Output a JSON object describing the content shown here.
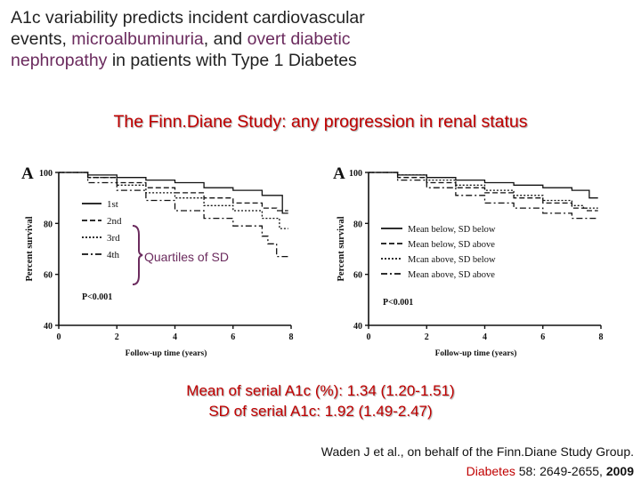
{
  "title": {
    "part1": "A1c variability predicts incident cardiovascular",
    "part2_pre": "events, ",
    "part2_hl1": "microalbuminuria",
    "part2_mid": ", and ",
    "part2_hl2": "overt diabetic",
    "part3_hl": "nephropathy",
    "part3_post": " in patients with Type 1 Diabetes"
  },
  "subtitle": "The Finn.Diane Study: any progression in renal status",
  "annotation": "Quartiles of SD",
  "stats": {
    "mean": "Mean of serial A1c (%): 1.34 (1.20-1.51)",
    "sd": "SD of serial A1c: 1.92 (1.49-2.47)"
  },
  "reference": {
    "line1": "Waden J et al., on behalf of the Finn.Diane Study Group.",
    "journal": "Diabetes",
    "pages": " 58: 2649-2655, ",
    "year": "2009"
  },
  "colors": {
    "accent": "#c00000",
    "highlight": "#6b2b5e"
  },
  "chart_data": [
    {
      "type": "line",
      "panel_label": "A",
      "xlabel": "Follow-up time (years)",
      "ylabel": "Percent survival",
      "xlim": [
        0,
        8
      ],
      "ylim": [
        40,
        100
      ],
      "xticks": [
        0,
        2,
        4,
        6,
        8
      ],
      "yticks": [
        40,
        60,
        80,
        100
      ],
      "pvalue": "P<0.001",
      "series": [
        {
          "name": "1st",
          "dash": "solid",
          "x": [
            0,
            1,
            2,
            3,
            4,
            5,
            6,
            7,
            7.5,
            7.7,
            7.9
          ],
          "y": [
            100,
            99,
            98,
            97,
            96,
            94,
            93,
            91,
            91,
            84,
            84
          ]
        },
        {
          "name": "2nd",
          "dash": "dashed",
          "x": [
            0,
            1,
            2,
            3,
            4,
            5,
            6,
            7,
            7.5,
            7.9
          ],
          "y": [
            100,
            98,
            96,
            94,
            92,
            90,
            88,
            86,
            85,
            85
          ]
        },
        {
          "name": "3rd",
          "dash": "dotted",
          "x": [
            0,
            1,
            2,
            3,
            4,
            5,
            6,
            7,
            7.3,
            7.6,
            7.9
          ],
          "y": [
            100,
            98,
            95,
            92,
            90,
            87,
            85,
            82,
            82,
            78,
            78
          ]
        },
        {
          "name": "4th",
          "dash": "dashdot",
          "x": [
            0,
            1,
            2,
            3,
            4,
            5,
            6,
            7,
            7.2,
            7.5,
            7.9
          ],
          "y": [
            100,
            96,
            93,
            89,
            85,
            82,
            79,
            75,
            72,
            67,
            67
          ]
        }
      ]
    },
    {
      "type": "line",
      "panel_label": "A",
      "xlabel": "Follow-up time (years)",
      "ylabel": "Percent survival",
      "xlim": [
        0,
        8
      ],
      "ylim": [
        40,
        100
      ],
      "xticks": [
        0,
        2,
        4,
        6,
        8
      ],
      "yticks": [
        40,
        60,
        80,
        100
      ],
      "pvalue": "P<0.001",
      "series": [
        {
          "name": "Mean below, SD below",
          "dash": "solid",
          "x": [
            0,
            1,
            2,
            3,
            4,
            5,
            6,
            7,
            7.5,
            7.6,
            7.9
          ],
          "y": [
            100,
            99,
            98,
            97,
            96,
            95,
            94,
            93,
            93,
            90,
            90
          ]
        },
        {
          "name": "Mean below, SD above",
          "dash": "dashed",
          "x": [
            0,
            1,
            2,
            3,
            4,
            5,
            6,
            7,
            7.5,
            7.9
          ],
          "y": [
            100,
            98,
            96,
            94,
            92,
            90,
            88,
            86,
            85,
            85
          ]
        },
        {
          "name": "Mcan above, SD below",
          "dash": "dotted",
          "x": [
            0,
            1,
            2,
            3,
            4,
            5,
            6,
            7,
            7.4,
            7.9
          ],
          "y": [
            100,
            99,
            97,
            95,
            93,
            91,
            89,
            87,
            86,
            86
          ]
        },
        {
          "name": "Mean above, SD above",
          "dash": "dashdot",
          "x": [
            0,
            1,
            2,
            3,
            4,
            5,
            6,
            7,
            7.5,
            7.9
          ],
          "y": [
            100,
            97,
            94,
            91,
            88,
            86,
            84,
            82,
            82,
            82
          ]
        }
      ]
    }
  ]
}
